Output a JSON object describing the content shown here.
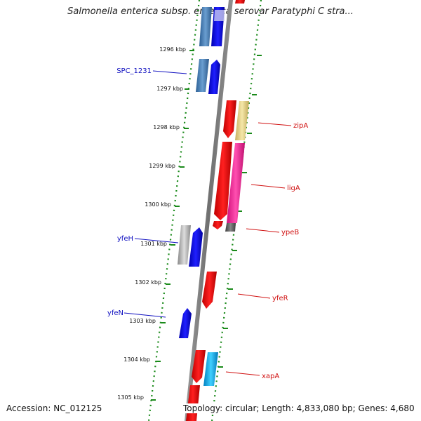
{
  "title": "Salmonella enterica subsp. enterica serovar Paratyphi C stra...",
  "footer": {
    "accession": "Accession: NC_012125",
    "summary": "Topology: circular; Length: 4,833,080 bp; Genes: 4,680"
  },
  "ticks": [
    "1296 kbp",
    "1297 kbp",
    "1298 kbp",
    "1299 kbp",
    "1300 kbp",
    "1301 kbp",
    "1302 kbp",
    "1303 kbp",
    "1304 kbp",
    "1305 kbp"
  ],
  "gene_labels": [
    {
      "text": "SPC_1231",
      "color": "#1010c0"
    },
    {
      "text": "zipA",
      "color": "#d01010"
    },
    {
      "text": "ligA",
      "color": "#d01010"
    },
    {
      "text": "ypeB",
      "color": "#d01010"
    },
    {
      "text": "yfeH",
      "color": "#1010c0"
    },
    {
      "text": "yfeR",
      "color": "#d01010"
    },
    {
      "text": "yfeN",
      "color": "#1010c0"
    },
    {
      "text": "xapA",
      "color": "#d01010"
    }
  ],
  "colors": {
    "forward_strand": "#ff0000",
    "reverse_strand": "#0000ff",
    "backbone": "#808080",
    "dotted_track": "#1a8a1a",
    "zipA_partner": "#e8d890",
    "ligA_partner": "#ff1493",
    "ypeB_partner": "#606060",
    "xapA_partner": "#00b0f0",
    "rev_partner_light": "#a8a8a8",
    "rev_partner_steel": "#3d7ab8"
  }
}
